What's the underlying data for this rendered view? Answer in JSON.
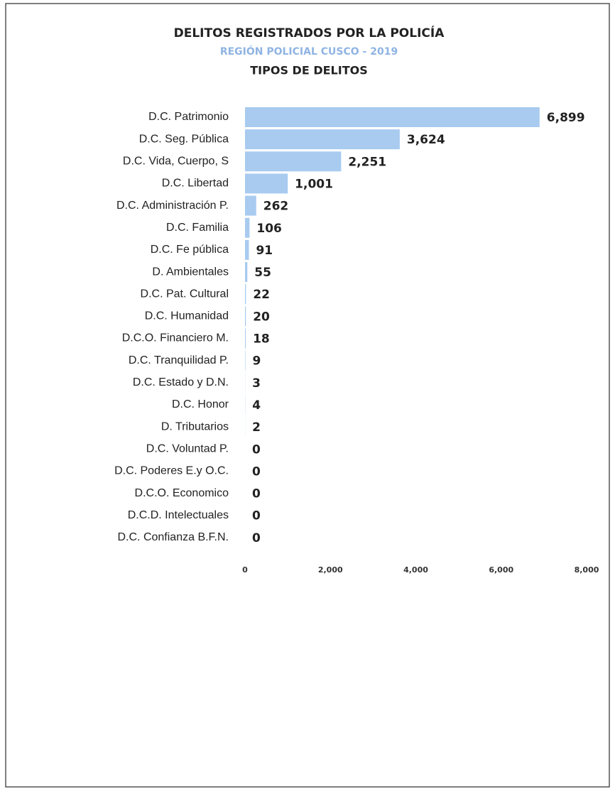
{
  "chart_data": {
    "type": "hbar",
    "title": "DELITOS REGISTRADOS POR LA POLICÍA",
    "subtitle": "REGIÓN POLICIAL CUSCO - 2019",
    "chart_label": "TIPOS DE DELITOS",
    "categories": [
      "D.C. Patrimonio",
      "D.C. Seg. Pública",
      "D.C. Vida, Cuerpo, S",
      "D.C. Libertad",
      "D.C. Administración P.",
      "D.C. Familia",
      "D.C. Fe pública",
      "D. Ambientales",
      "D.C. Pat. Cultural",
      "D.C. Humanidad",
      "D.C.O. Financiero M.",
      "D.C. Tranquilidad P.",
      "D.C. Estado y D.N.",
      "D.C. Honor",
      "D. Tributarios",
      "D.C. Voluntad P.",
      "D.C. Poderes E.y O.C.",
      "D.C.O. Economico",
      "D.C.D. Intelectuales",
      "D.C. Confianza B.F.N."
    ],
    "values": [
      6899,
      3624,
      2251,
      1001,
      262,
      106,
      91,
      55,
      22,
      20,
      18,
      9,
      3,
      4,
      2,
      0,
      0,
      0,
      0,
      0
    ],
    "value_labels": [
      "6,899",
      "3,624",
      "2,251",
      "1,001",
      "262",
      "106",
      "91",
      "55",
      "22",
      "20",
      "18",
      "9",
      "3",
      "4",
      "2",
      "0",
      "0",
      "0",
      "0",
      "0"
    ],
    "color": "#a8cbef",
    "xlim": [
      0,
      8000
    ],
    "xticks": [
      0,
      {
        "value": 2000,
        "label": "2,000"
      },
      {
        "value": 4000,
        "label": "4,000"
      },
      {
        "value": 6000,
        "label": "6,000"
      },
      {
        "value": 8000,
        "label": "8,000"
      }
    ],
    "grid": false
  }
}
